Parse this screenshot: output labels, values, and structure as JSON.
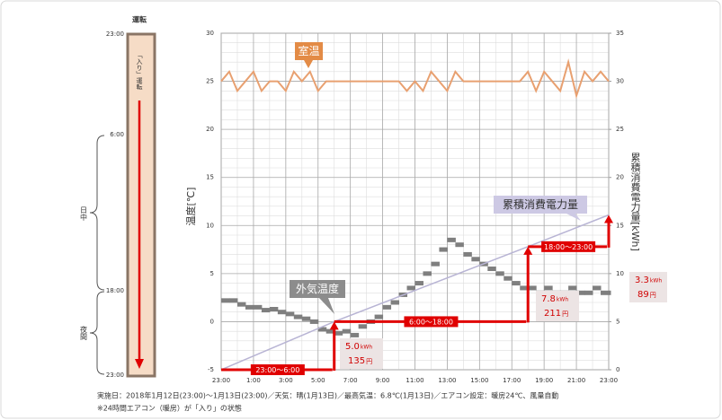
{
  "chart_data": {
    "type": "line",
    "y_axis_label": "温度[℃]",
    "y2_axis_label": "累積消費電力量[kWh]",
    "xlim": [
      0,
      24
    ],
    "xticks": [
      {
        "value": 0,
        "label": "23:00"
      },
      {
        "value": 2,
        "label": "1:00"
      },
      {
        "value": 4,
        "label": "3:00"
      },
      {
        "value": 6,
        "label": "5:00"
      },
      {
        "value": 8,
        "label": "7:00"
      },
      {
        "value": 10,
        "label": "9:00"
      },
      {
        "value": 12,
        "label": "11:00"
      },
      {
        "value": 14,
        "label": "13:00"
      },
      {
        "value": 16,
        "label": "15:00"
      },
      {
        "value": 18,
        "label": "17:00"
      },
      {
        "value": 20,
        "label": "19:00"
      },
      {
        "value": 22,
        "label": "21:00"
      },
      {
        "value": 24,
        "label": "23:00"
      }
    ],
    "ylim": [
      -5,
      30
    ],
    "yticks": [
      -5,
      0,
      5,
      10,
      15,
      20,
      25,
      30
    ],
    "y2lim": [
      0,
      35
    ],
    "y2ticks": [
      0,
      5,
      10,
      15,
      20,
      25,
      30,
      35
    ],
    "grid": true,
    "x": [
      0,
      0.5,
      1,
      1.5,
      2,
      2.5,
      3,
      3.5,
      4,
      4.5,
      5,
      5.5,
      6,
      6.5,
      7,
      7.5,
      8,
      8.5,
      9,
      9.5,
      10,
      10.5,
      11,
      11.5,
      12,
      12.5,
      13,
      13.5,
      14,
      14.5,
      15,
      15.5,
      16,
      16.5,
      17,
      17.5,
      18,
      18.5,
      19,
      19.5,
      20,
      20.5,
      21,
      21.5,
      22,
      22.5,
      23,
      23.5,
      24
    ],
    "series": [
      {
        "name": "室温",
        "color": "#e8a070",
        "style": "line",
        "values": [
          25,
          26,
          24,
          25,
          26,
          24,
          25,
          25,
          24,
          26,
          25,
          26,
          24,
          25,
          25,
          25,
          25,
          25,
          25,
          25,
          25,
          25,
          25,
          24,
          25,
          24,
          26,
          25,
          24,
          26,
          25,
          25,
          25,
          25,
          25,
          25,
          25,
          25,
          26,
          24,
          26,
          25,
          24,
          27,
          23.5,
          26,
          25,
          26,
          25
        ]
      },
      {
        "name": "外気温度",
        "color": "#7f7f7f",
        "style": "step",
        "values": [
          2.2,
          2.2,
          1.8,
          1.5,
          1.5,
          1.2,
          1.3,
          1,
          0.8,
          0.5,
          0.3,
          0,
          -0.8,
          -1,
          -1.2,
          -1,
          -1.4,
          -0.5,
          0,
          0.5,
          1.5,
          2,
          2.8,
          3.5,
          4,
          5,
          6,
          7.5,
          8.5,
          8,
          7,
          6.5,
          6,
          5.5,
          5,
          4.5,
          4,
          3.5,
          3.5,
          3,
          3.5,
          3,
          3,
          3.5,
          3,
          3,
          3.5,
          3,
          3
        ]
      },
      {
        "name": "累積消費電力量",
        "color": "#b8b4d4",
        "style": "line",
        "axis": "y2",
        "x": [
          0,
          7,
          19,
          24
        ],
        "values": [
          0,
          5,
          12.8,
          16.1
        ]
      }
    ],
    "periods": {
      "names": [
        "23:00～6:00",
        "6:00～18:00",
        "18:00～23:00"
      ],
      "start": [
        0,
        7,
        19
      ],
      "end": [
        7,
        19,
        24
      ],
      "values": [
        5,
        7.8,
        3.3
      ],
      "value_labels": [
        "5.0",
        "7.8",
        "3.3"
      ],
      "unit": "kWh",
      "costs": [
        135,
        211,
        89
      ],
      "cost_unit": "円",
      "color": "#e00000"
    }
  },
  "schedule": {
    "title": "運転",
    "mode": "「入り」運転",
    "times": [
      "23:00",
      "6:00",
      "18:00",
      "23:00"
    ],
    "day": "日中",
    "night": "夜間"
  },
  "footer": [
    "実施日：2018年1月12日(23:00)～1月13日(23:00)／天気：晴(1月13日)／最高気温：6.8℃(1月13日)／エアコン設定：暖房24℃、風量自動",
    "※24時間エアコン（暖房）が「入り」の状態"
  ]
}
